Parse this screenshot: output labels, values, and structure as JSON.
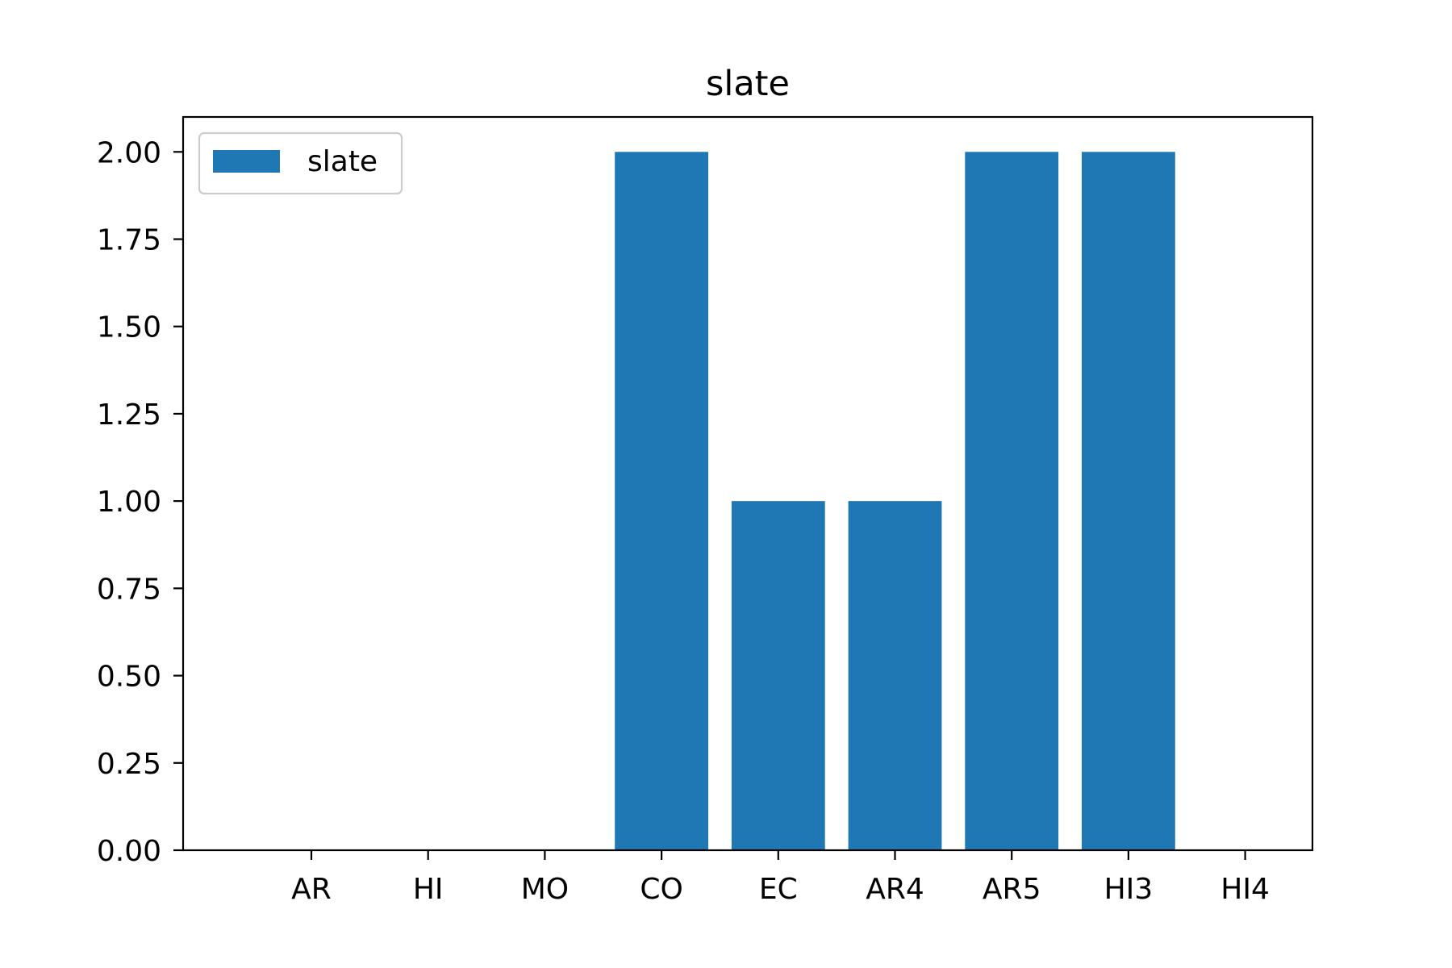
{
  "chart_data": {
    "type": "bar",
    "title": "slate",
    "xlabel": "",
    "ylabel": "",
    "categories": [
      "AR",
      "HI",
      "MO",
      "CO",
      "EC",
      "AR4",
      "AR5",
      "HI3",
      "HI4"
    ],
    "series": [
      {
        "name": "slate",
        "color": "#1f77b4",
        "values": [
          0,
          0,
          0,
          2,
          1,
          1,
          2,
          2,
          0
        ]
      }
    ],
    "ylim": [
      0,
      2.1
    ],
    "yticks": [
      0,
      0.25,
      0.5,
      0.75,
      1.0,
      1.25,
      1.5,
      1.75,
      2.0
    ],
    "ytick_labels": [
      "0.00",
      "0.25",
      "0.50",
      "0.75",
      "1.00",
      "1.25",
      "1.50",
      "1.75",
      "2.00"
    ],
    "grid": false,
    "legend": {
      "position": "upper-left",
      "entries": [
        "slate"
      ]
    }
  }
}
